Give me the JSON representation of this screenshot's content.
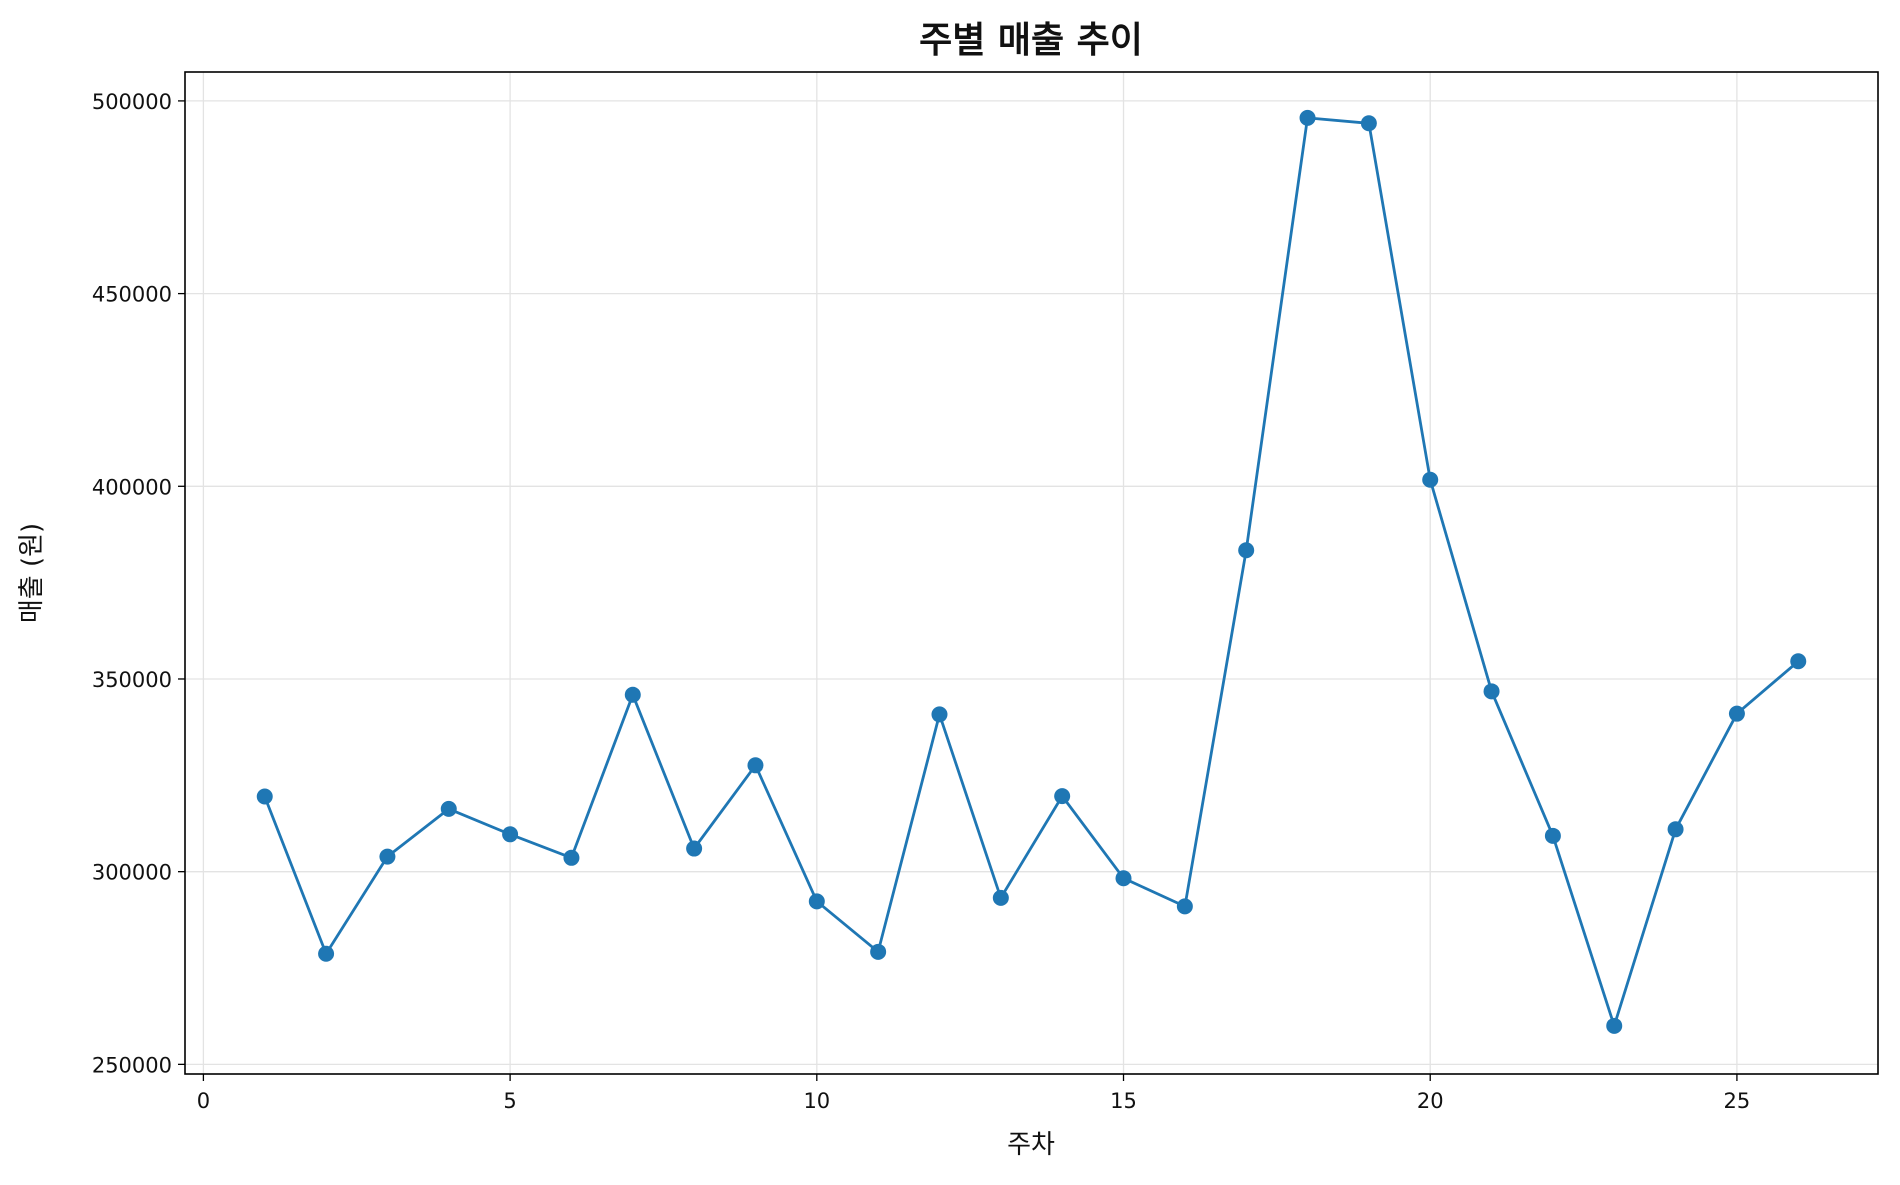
{
  "chart_data": {
    "type": "line",
    "title": "주별 매출 추이",
    "xlabel": "주차",
    "ylabel": "매출 (원)",
    "xlim": [
      -0.3,
      27.3
    ],
    "ylim": [
      247500,
      507500
    ],
    "xticks": [
      0,
      5,
      10,
      15,
      20,
      25
    ],
    "yticks": [
      250000,
      300000,
      350000,
      400000,
      450000,
      500000
    ],
    "grid": true,
    "series": [
      {
        "color": "#1f77b4",
        "marker": "circle",
        "x": [
          1,
          2,
          3,
          4,
          5,
          6,
          7,
          8,
          9,
          10,
          11,
          12,
          13,
          14,
          15,
          16,
          17,
          18,
          19,
          20,
          21,
          22,
          23,
          24,
          25,
          26
        ],
        "y": [
          319500,
          278700,
          303900,
          316300,
          309700,
          303600,
          345900,
          306000,
          327600,
          292300,
          279200,
          340800,
          293200,
          319600,
          298300,
          291000,
          383400,
          495600,
          494200,
          401700,
          346800,
          309300,
          260000,
          311000,
          341000,
          354600
        ]
      }
    ]
  }
}
